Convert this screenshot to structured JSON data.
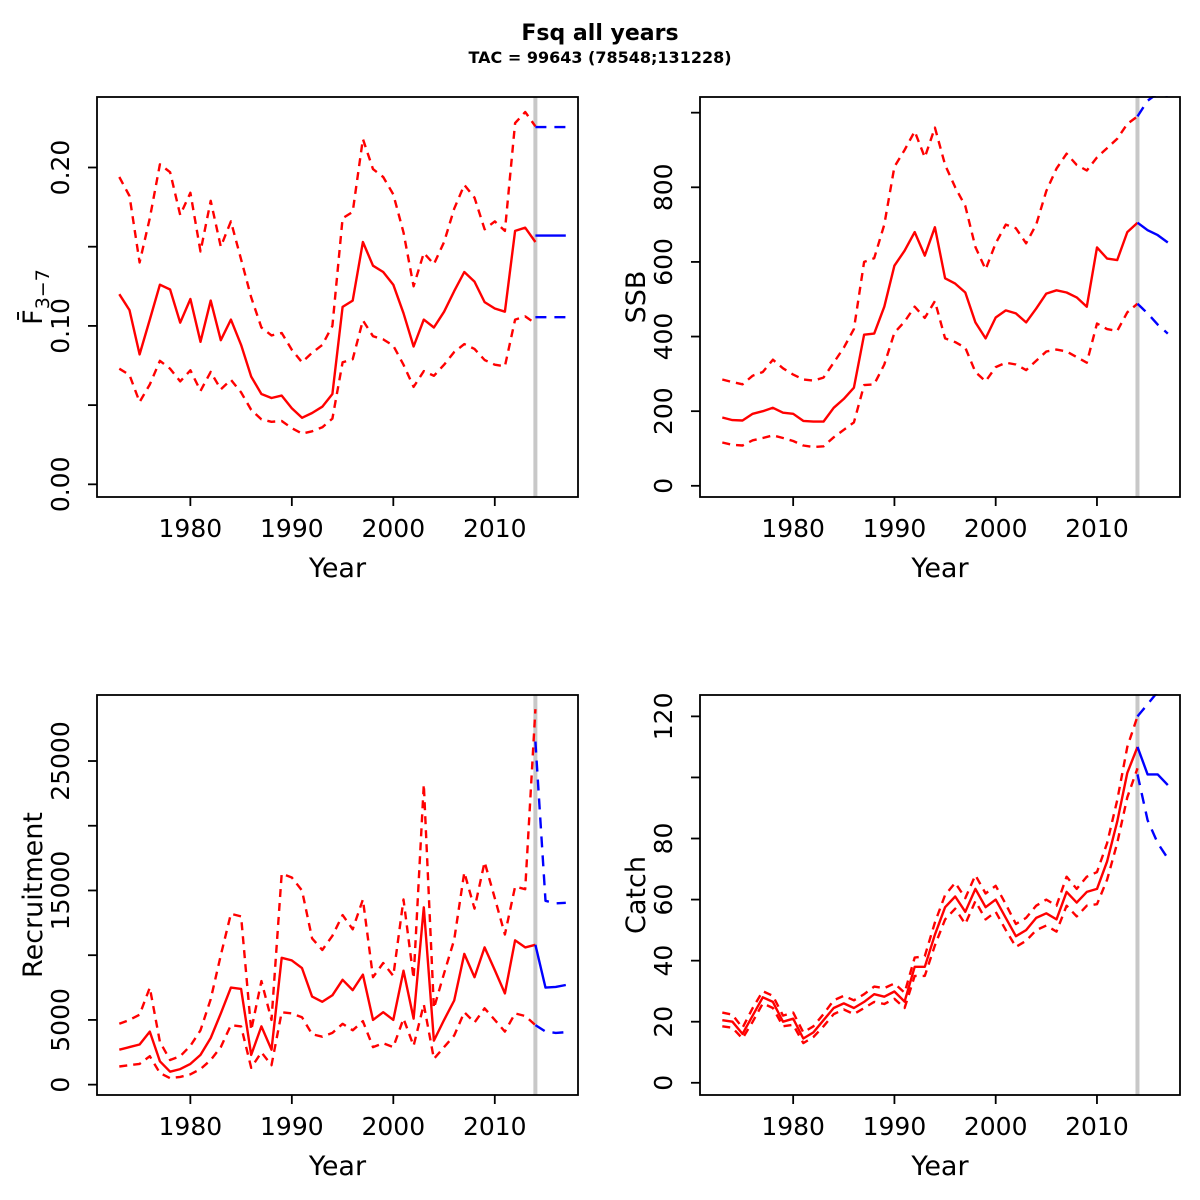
{
  "chart_data": {
    "type": "line",
    "title": "Fsq all years",
    "subtitle": "TAC = 99643 (78548;131228)",
    "layout": "2x2-grid",
    "description": "Stock assessment forecast: red solid = median, red dashed = confidence bounds (history), blue = forecast after divider year, grey vertical line = start of forecast",
    "x": {
      "label": "Year",
      "range": [
        1970.8,
        2018.2
      ],
      "ticks": [
        1980,
        1990,
        2000,
        2010
      ]
    },
    "divider_year": 2014,
    "legend": {
      "history_color": "#FF0000",
      "forecast_color": "#0000FF",
      "divider_color": "#C8C8C8",
      "frame_color": "#000000",
      "median_style": "solid",
      "ci_style": "dashed"
    },
    "history_years": [
      1973,
      1974,
      1975,
      1976,
      1977,
      1978,
      1979,
      1980,
      1981,
      1982,
      1983,
      1984,
      1985,
      1986,
      1987,
      1988,
      1989,
      1990,
      1991,
      1992,
      1993,
      1994,
      1995,
      1996,
      1997,
      1998,
      1999,
      2000,
      2001,
      2002,
      2003,
      2004,
      2005,
      2006,
      2007,
      2008,
      2009,
      2010,
      2011,
      2012,
      2013,
      2014
    ],
    "forecast_years": [
      2014,
      2015,
      2016,
      2017
    ],
    "panels": [
      {
        "name": "fbar",
        "ylabel_plain": "F3-7",
        "ylabel_parts": [
          {
            "text": "F̄"
          },
          {
            "text": "3−7",
            "sub": true
          }
        ],
        "ylim": [
          -0.008,
          0.2445
        ],
        "yticks": [
          {
            "v": 0.0,
            "label": "0.00"
          },
          {
            "v": 0.05,
            "label": ""
          },
          {
            "v": 0.1,
            "label": "0.10"
          },
          {
            "v": 0.15,
            "label": ""
          },
          {
            "v": 0.2,
            "label": "0.20"
          }
        ],
        "history": {
          "median": [
            0.12,
            0.11,
            0.082,
            0.104,
            0.126,
            0.123,
            0.102,
            0.117,
            0.09,
            0.116,
            0.091,
            0.104,
            0.088,
            0.068,
            0.057,
            0.0545,
            0.056,
            0.048,
            0.042,
            0.045,
            0.049,
            0.057,
            0.112,
            0.116,
            0.153,
            0.138,
            0.134,
            0.126,
            0.108,
            0.087,
            0.104,
            0.099,
            0.109,
            0.122,
            0.134,
            0.128,
            0.115,
            0.111,
            0.109,
            0.16,
            0.162,
            0.153
          ],
          "upper": [
            0.194,
            0.182,
            0.14,
            0.168,
            0.202,
            0.197,
            0.17,
            0.184,
            0.147,
            0.179,
            0.15,
            0.166,
            0.142,
            0.118,
            0.099,
            0.094,
            0.0955,
            0.085,
            0.077,
            0.083,
            0.088,
            0.1,
            0.168,
            0.172,
            0.218,
            0.199,
            0.194,
            0.183,
            0.159,
            0.125,
            0.146,
            0.139,
            0.153,
            0.174,
            0.189,
            0.181,
            0.161,
            0.166,
            0.16,
            0.228,
            0.235,
            0.226
          ],
          "lower": [
            0.073,
            0.069,
            0.052,
            0.063,
            0.078,
            0.073,
            0.065,
            0.072,
            0.059,
            0.071,
            0.06,
            0.066,
            0.058,
            0.047,
            0.041,
            0.0395,
            0.04,
            0.0355,
            0.032,
            0.0335,
            0.036,
            0.0415,
            0.077,
            0.079,
            0.1035,
            0.0935,
            0.0915,
            0.0875,
            0.0755,
            0.0615,
            0.0715,
            0.0685,
            0.0755,
            0.0835,
            0.0885,
            0.0855,
            0.0785,
            0.0755,
            0.0745,
            0.104,
            0.106,
            0.1015
          ]
        },
        "forecast": {
          "median": [
            0.157,
            0.157,
            0.157,
            0.157
          ],
          "upper": [
            0.2255,
            0.2255,
            0.2255,
            0.2255
          ],
          "lower": [
            0.1055,
            0.1055,
            0.1055,
            0.1055
          ]
        }
      },
      {
        "name": "ssb",
        "ylabel_plain": "SSB",
        "ylabel_parts": [
          {
            "text": "SSB"
          }
        ],
        "ylim": [
          -30,
          1042
        ],
        "yticks": [
          {
            "v": 0,
            "label": "0"
          },
          {
            "v": 200,
            "label": "200"
          },
          {
            "v": 400,
            "label": "400"
          },
          {
            "v": 600,
            "label": "600"
          },
          {
            "v": 800,
            "label": "800"
          },
          {
            "v": 1000,
            "label": ""
          }
        ],
        "history": {
          "median": [
            183,
            176,
            175,
            193,
            200,
            209,
            196,
            193,
            174,
            172,
            172,
            209,
            233,
            263,
            405,
            408,
            480,
            590,
            630,
            680,
            617,
            693,
            556,
            542,
            518,
            438,
            395,
            451,
            470,
            462,
            438,
            475,
            515,
            524,
            518,
            505,
            480,
            639,
            609,
            605,
            680,
            705
          ],
          "upper": [
            285,
            278,
            272,
            295,
            305,
            338,
            315,
            298,
            285,
            282,
            290,
            330,
            370,
            420,
            600,
            610,
            700,
            855,
            900,
            950,
            880,
            960,
            860,
            800,
            750,
            640,
            580,
            650,
            700,
            690,
            650,
            700,
            790,
            850,
            890,
            860,
            845,
            880,
            905,
            930,
            970,
            990
          ],
          "lower": [
            116,
            110,
            108,
            122,
            128,
            135,
            128,
            120,
            108,
            104,
            106,
            130,
            150,
            170,
            270,
            272,
            325,
            410,
            440,
            480,
            450,
            495,
            395,
            385,
            370,
            305,
            280,
            318,
            330,
            325,
            310,
            335,
            360,
            365,
            360,
            345,
            330,
            435,
            420,
            415,
            465,
            488
          ]
        },
        "forecast": {
          "median": [
            705,
            685,
            672,
            652
          ],
          "upper": [
            990,
            1032,
            1052,
            1046
          ],
          "lower": [
            488,
            462,
            432,
            408
          ]
        }
      },
      {
        "name": "recruitment",
        "ylabel_plain": "Recruitment",
        "ylabel_parts": [
          {
            "text": "Recruitment"
          }
        ],
        "ylim": [
          -800,
          30100
        ],
        "yticks": [
          {
            "v": 0,
            "label": "0"
          },
          {
            "v": 5000,
            "label": "5000"
          },
          {
            "v": 10000,
            "label": ""
          },
          {
            "v": 15000,
            "label": "15000"
          },
          {
            "v": 20000,
            "label": ""
          },
          {
            "v": 25000,
            "label": "25000"
          }
        ],
        "history": {
          "median": [
            2700,
            2900,
            3100,
            4100,
            1800,
            1000,
            1200,
            1600,
            2300,
            3600,
            5500,
            7500,
            7400,
            2300,
            4500,
            2700,
            9800,
            9600,
            9000,
            6800,
            6400,
            6900,
            8100,
            7300,
            8500,
            5000,
            5600,
            5000,
            8800,
            5100,
            13700,
            3400,
            5000,
            6500,
            10100,
            8300,
            10600,
            8850,
            7050,
            11150,
            10600,
            10800
          ],
          "upper": [
            4700,
            5000,
            5400,
            7500,
            3300,
            1900,
            2200,
            3000,
            4200,
            6600,
            10000,
            13200,
            13000,
            4200,
            8000,
            5000,
            16300,
            16000,
            15000,
            11300,
            10400,
            11500,
            13100,
            12000,
            14300,
            8300,
            9400,
            8400,
            14300,
            8200,
            23200,
            5900,
            8600,
            11200,
            16400,
            13600,
            17200,
            14400,
            11600,
            15300,
            15100,
            29000
          ],
          "lower": [
            1400,
            1500,
            1600,
            2200,
            900,
            500,
            600,
            800,
            1200,
            1900,
            2900,
            4600,
            4500,
            1300,
            2500,
            1500,
            5600,
            5500,
            5200,
            3900,
            3700,
            4000,
            4700,
            4200,
            4900,
            2900,
            3200,
            2900,
            5100,
            3000,
            6200,
            2000,
            2900,
            3800,
            5600,
            4800,
            5900,
            5000,
            4100,
            5500,
            5300,
            4600
          ]
        },
        "forecast": {
          "median": [
            10800,
            7500,
            7550,
            7700
          ],
          "upper": [
            26500,
            14200,
            14000,
            14050
          ],
          "lower": [
            4600,
            4100,
            4000,
            4050
          ]
        }
      },
      {
        "name": "catch",
        "ylabel_plain": "Catch",
        "ylabel_parts": [
          {
            "text": "Catch"
          }
        ],
        "ylim": [
          -4,
          127
        ],
        "yticks": [
          {
            "v": 0,
            "label": "0"
          },
          {
            "v": 20,
            "label": "20"
          },
          {
            "v": 40,
            "label": "40"
          },
          {
            "v": 60,
            "label": "60"
          },
          {
            "v": 80,
            "label": "80"
          },
          {
            "v": 100,
            "label": ""
          },
          {
            "v": 120,
            "label": "120"
          }
        ],
        "history": {
          "median": [
            20.5,
            20,
            16,
            22,
            28,
            26.5,
            20,
            21,
            14.5,
            16.5,
            20.5,
            24.5,
            26,
            24.5,
            26.5,
            29,
            28.2,
            29.9,
            26.6,
            38,
            38,
            48.5,
            57.5,
            61,
            56,
            63.5,
            57.5,
            60,
            54,
            48,
            50,
            54,
            55.5,
            53.5,
            62.5,
            59,
            62.5,
            63.5,
            72.5,
            85.5,
            101.5,
            110
          ],
          "upper": [
            23,
            22.3,
            18,
            24.5,
            30,
            28.5,
            22,
            23,
            16.5,
            18.5,
            22.5,
            27,
            28.5,
            27,
            29,
            31.5,
            31,
            32.5,
            29.5,
            41,
            41.5,
            52.5,
            61.5,
            65.5,
            60.5,
            68,
            62,
            64.5,
            58.5,
            52,
            54,
            58,
            60,
            58,
            67.5,
            63.5,
            67.5,
            69,
            78.5,
            92.5,
            110,
            120
          ],
          "lower": [
            18.5,
            18,
            14.5,
            20,
            26,
            24.5,
            18.5,
            19,
            13,
            15,
            18.5,
            22.5,
            24,
            22.5,
            24.5,
            26.5,
            25.8,
            27.5,
            24.5,
            35,
            35,
            45,
            53.5,
            57,
            52,
            59.5,
            53.5,
            56,
            50,
            44.5,
            46.5,
            50,
            51.5,
            49.5,
            58,
            54.5,
            58,
            58.5,
            66.5,
            78.5,
            93.5,
            103
          ]
        },
        "forecast": {
          "median": [
            110,
            101,
            101,
            97.5
          ],
          "upper": [
            120,
            124,
            128,
            132
          ],
          "lower": [
            101,
            86,
            78.5,
            73.5
          ]
        }
      }
    ]
  }
}
